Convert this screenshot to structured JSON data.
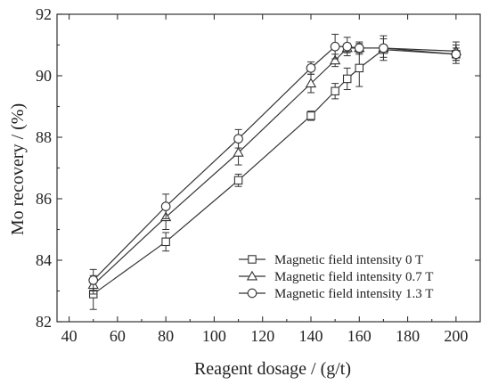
{
  "chart_data": {
    "type": "line",
    "xlabel": "Reagent dosage / (g/t)",
    "ylabel": "Mo recovery / (%)",
    "xlim": [
      35,
      210
    ],
    "ylim": [
      82,
      92
    ],
    "xticks": [
      40,
      60,
      80,
      100,
      120,
      140,
      160,
      180,
      200
    ],
    "yticks": [
      82,
      84,
      86,
      88,
      90,
      92
    ],
    "grid": false,
    "legend_position": "bottom-right",
    "series": [
      {
        "name": "Magnetic field intensity 0 T",
        "marker": "square",
        "points": [
          {
            "x": 50,
            "y": 82.9,
            "err": 0.5
          },
          {
            "x": 80,
            "y": 84.6,
            "err": 0.3
          },
          {
            "x": 110,
            "y": 86.6,
            "err": 0.2
          },
          {
            "x": 140,
            "y": 88.7,
            "err": 0.15
          },
          {
            "x": 150,
            "y": 89.5,
            "err": 0.25
          },
          {
            "x": 155,
            "y": 89.9,
            "err": 0.35
          },
          {
            "x": 160,
            "y": 90.25,
            "err": 0.6
          },
          {
            "x": 170,
            "y": 90.85,
            "err": 0.1
          },
          {
            "x": 200,
            "y": 90.7,
            "err": 0.2
          }
        ]
      },
      {
        "name": "Magnetic field intensity 0.7 T",
        "marker": "triangle",
        "points": [
          {
            "x": 50,
            "y": 83.2,
            "err": 0.3
          },
          {
            "x": 80,
            "y": 85.4,
            "err": 0.4
          },
          {
            "x": 110,
            "y": 87.5,
            "err": 0.4
          },
          {
            "x": 140,
            "y": 89.75,
            "err": 0.3
          },
          {
            "x": 150,
            "y": 90.5,
            "err": 0.2
          },
          {
            "x": 155,
            "y": 90.9,
            "err": 0.15
          },
          {
            "x": 160,
            "y": 90.9,
            "err": 0.15
          },
          {
            "x": 170,
            "y": 90.9,
            "err": 0.4
          },
          {
            "x": 200,
            "y": 90.8,
            "err": 0.3
          }
        ]
      },
      {
        "name": "Magnetic field intensity 1.3 T",
        "marker": "circle",
        "points": [
          {
            "x": 50,
            "y": 83.35,
            "err": 0.35
          },
          {
            "x": 80,
            "y": 85.75,
            "err": 0.4
          },
          {
            "x": 110,
            "y": 87.95,
            "err": 0.3
          },
          {
            "x": 140,
            "y": 90.25,
            "err": 0.2
          },
          {
            "x": 150,
            "y": 90.95,
            "err": 0.4
          },
          {
            "x": 155,
            "y": 90.95,
            "err": 0.3
          },
          {
            "x": 160,
            "y": 90.9,
            "err": 0.2
          },
          {
            "x": 170,
            "y": 90.9,
            "err": 0.3
          },
          {
            "x": 200,
            "y": 90.7,
            "err": 0.3
          }
        ]
      }
    ]
  }
}
